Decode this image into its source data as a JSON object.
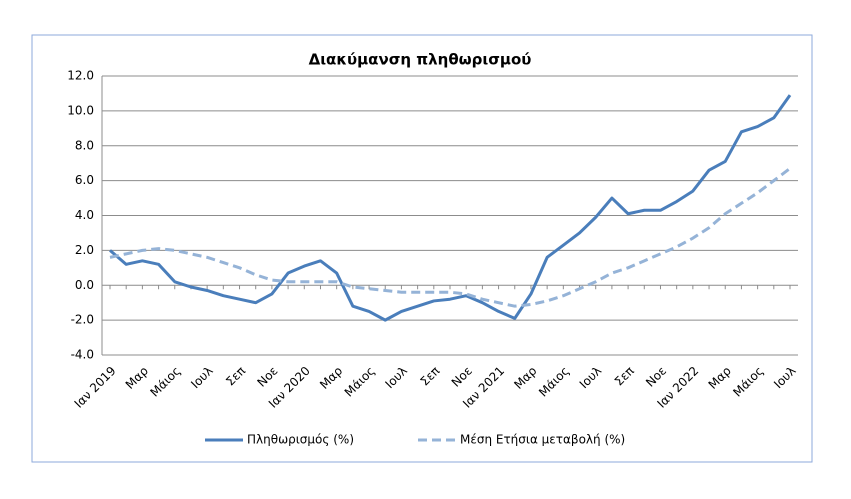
{
  "chart_data": {
    "type": "line",
    "title": "Διακύμανση  πληθωρισμού",
    "categories": [
      "Ιαν 2019",
      null,
      "Μαρ",
      null,
      "Μάιος",
      null,
      "Ιουλ",
      null,
      "Σεπ",
      null,
      "Νοε",
      null,
      "Ιαν 2020",
      null,
      "Μαρ",
      null,
      "Μάιος",
      null,
      "Ιουλ",
      null,
      "Σεπ",
      null,
      "Νοε",
      null,
      "Ιαν 2021",
      null,
      "Μαρ",
      null,
      "Μάιος",
      null,
      "Ιουλ",
      null,
      "Σεπ",
      null,
      "Νοε",
      null,
      "Ιαν 2022",
      null,
      "Μαρ",
      null,
      "Μάιος",
      null,
      "Ιουλ"
    ],
    "series": [
      {
        "name": "Πληθωρισμός (%)",
        "color": "#4a7ebb",
        "dashed": false,
        "values": [
          2.0,
          1.2,
          1.4,
          1.2,
          0.2,
          -0.1,
          -0.3,
          -0.6,
          -0.8,
          -1.0,
          -0.5,
          0.7,
          1.1,
          1.4,
          0.7,
          -1.2,
          -1.5,
          -2.0,
          -1.5,
          -1.2,
          -0.9,
          -0.8,
          -0.6,
          -1.0,
          -1.5,
          -1.9,
          -0.5,
          1.6,
          2.3,
          3.0,
          3.9,
          5.0,
          4.1,
          4.3,
          4.3,
          4.8,
          5.4,
          6.6,
          7.1,
          8.8,
          9.1,
          9.6,
          10.9
        ]
      },
      {
        "name": "Μέση Ετήσια μεταβολή (%)",
        "color": "#95b3d7",
        "dashed": true,
        "values": [
          1.6,
          1.8,
          2.0,
          2.1,
          2.0,
          1.8,
          1.6,
          1.3,
          1.0,
          0.6,
          0.3,
          0.2,
          0.2,
          0.2,
          0.2,
          -0.1,
          -0.2,
          -0.3,
          -0.4,
          -0.4,
          -0.4,
          -0.4,
          -0.5,
          -0.8,
          -1.0,
          -1.2,
          -1.1,
          -0.9,
          -0.6,
          -0.2,
          0.2,
          0.7,
          1.0,
          1.4,
          1.8,
          2.2,
          2.7,
          3.3,
          4.1,
          4.7,
          5.3,
          6.0,
          6.7
        ]
      }
    ],
    "ylim": [
      -4,
      12
    ],
    "yticks": [
      {
        "value": -4,
        "label": "-4.0"
      },
      {
        "value": -2,
        "label": "-2.0"
      },
      {
        "value": 0,
        "label": "0.0"
      },
      {
        "value": 2,
        "label": "2.0"
      },
      {
        "value": 4,
        "label": "4.0"
      },
      {
        "value": 6,
        "label": "6.0"
      },
      {
        "value": 8,
        "label": "8.0"
      },
      {
        "value": 10,
        "label": "10.0"
      },
      {
        "value": 12,
        "label": "12.0"
      }
    ],
    "grid": true,
    "legend": "bottom"
  }
}
